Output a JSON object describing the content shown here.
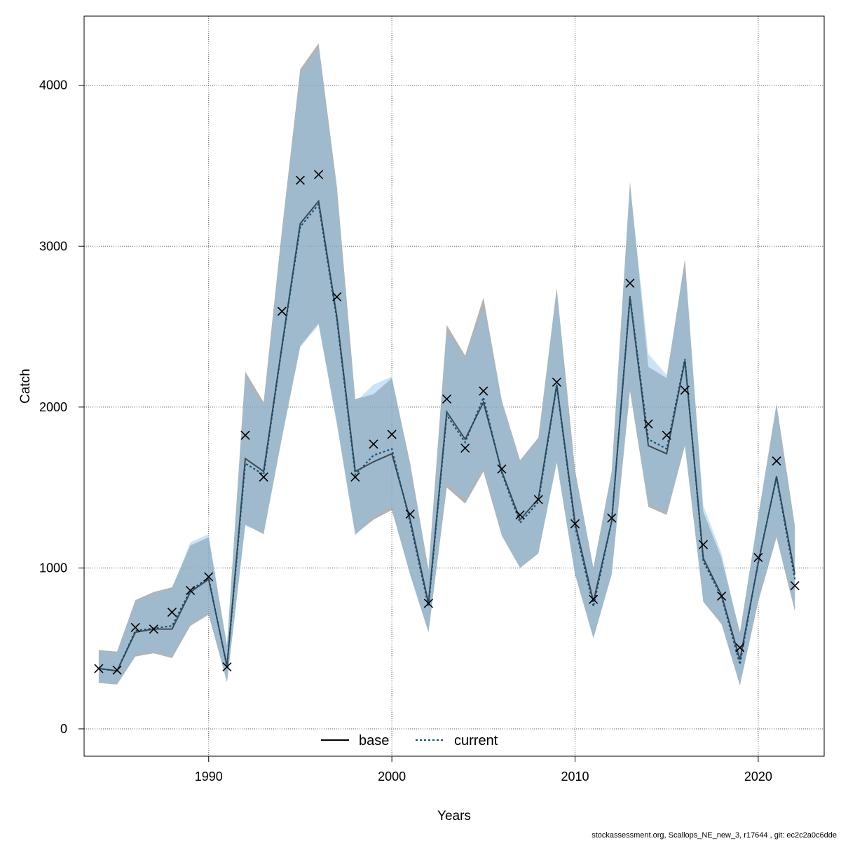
{
  "chart_data": {
    "type": "line",
    "xlabel": "Years",
    "ylabel": "Catch",
    "xlim": [
      1983.2,
      2023.6
    ],
    "ylim": [
      -170,
      4430
    ],
    "xticks": [
      1990,
      2000,
      2010,
      2020
    ],
    "yticks": [
      0,
      1000,
      2000,
      3000,
      4000
    ],
    "grid": true,
    "legend_position": "bottom-center",
    "colors": {
      "base_line": "#000000",
      "base_band": "#8a8a8a",
      "current_line": "#0a4f78",
      "current_band": "#87c3ec",
      "observed": "#000000"
    },
    "series": [
      {
        "name": "base",
        "style": "solid",
        "x": [
          1984,
          1985,
          1986,
          1987,
          1988,
          1989,
          1990,
          1991,
          1992,
          1993,
          1994,
          1995,
          1996,
          1997,
          1998,
          1999,
          2000,
          2001,
          2002,
          2003,
          2004,
          2005,
          2006,
          2007,
          2008,
          2009,
          2010,
          2011,
          2012,
          2013,
          2014,
          2015,
          2016,
          2017,
          2018,
          2019,
          2020,
          2021,
          2022
        ],
        "y": [
          375,
          360,
          600,
          620,
          620,
          850,
          930,
          390,
          1680,
          1600,
          2380,
          3140,
          3280,
          2560,
          1600,
          1660,
          1710,
          1300,
          780,
          1970,
          1800,
          2030,
          1600,
          1300,
          1430,
          2140,
          1280,
          790,
          1290,
          2680,
          1760,
          1710,
          2290,
          1060,
          830,
          430,
          1030,
          1570,
          960
        ],
        "lower": [
          285,
          275,
          450,
          470,
          440,
          640,
          710,
          290,
          1270,
          1210,
          1810,
          2380,
          2520,
          1900,
          1210,
          1300,
          1360,
          960,
          600,
          1500,
          1400,
          1600,
          1200,
          1000,
          1090,
          1660,
          960,
          565,
          960,
          2100,
          1380,
          1330,
          1760,
          790,
          650,
          270,
          790,
          1190,
          730
        ],
        "upper": [
          490,
          480,
          800,
          850,
          880,
          1140,
          1190,
          520,
          2220,
          2030,
          3100,
          4100,
          4260,
          3370,
          2050,
          2080,
          2180,
          1650,
          990,
          2510,
          2320,
          2680,
          2040,
          1670,
          1810,
          2740,
          1610,
          1000,
          1600,
          3400,
          2250,
          2180,
          2920,
          1350,
          1060,
          600,
          1320,
          2020,
          1260
        ]
      },
      {
        "name": "current",
        "style": "dotted",
        "x": [
          1984,
          1985,
          1986,
          1987,
          1988,
          1989,
          1990,
          1991,
          1992,
          1993,
          1994,
          1995,
          1996,
          1997,
          1998,
          1999,
          2000,
          2001,
          2002,
          2003,
          2004,
          2005,
          2006,
          2007,
          2008,
          2009,
          2010,
          2011,
          2012,
          2013,
          2014,
          2015,
          2016,
          2017,
          2018,
          2019,
          2020,
          2021,
          2022
        ],
        "y": [
          375,
          360,
          610,
          625,
          640,
          860,
          940,
          385,
          1650,
          1580,
          2370,
          3120,
          3260,
          2540,
          1580,
          1700,
          1740,
          1280,
          760,
          1950,
          1780,
          2060,
          1590,
          1280,
          1410,
          2130,
          1260,
          760,
          1290,
          2690,
          1800,
          1740,
          2300,
          1040,
          820,
          400,
          1040,
          1560,
          930
        ],
        "lower": [
          290,
          280,
          460,
          480,
          450,
          650,
          720,
          290,
          1260,
          1220,
          1810,
          2370,
          2510,
          1890,
          1200,
          1320,
          1380,
          950,
          600,
          1530,
          1420,
          1620,
          1200,
          1010,
          1090,
          1650,
          960,
          560,
          960,
          2120,
          1400,
          1350,
          1760,
          790,
          660,
          270,
          800,
          1200,
          740
        ],
        "upper": [
          480,
          470,
          790,
          840,
          870,
          1160,
          1210,
          510,
          2180,
          2010,
          3080,
          4070,
          4230,
          3340,
          2030,
          2140,
          2190,
          1640,
          970,
          2470,
          2300,
          2620,
          2030,
          1660,
          1800,
          2720,
          1600,
          990,
          1580,
          3380,
          2330,
          2200,
          2890,
          1390,
          1090,
          580,
          1330,
          2000,
          1230
        ]
      }
    ],
    "observed": {
      "marker": "x",
      "x": [
        1984,
        1985,
        1986,
        1987,
        1988,
        1989,
        1990,
        1991,
        1992,
        1993,
        1994,
        1995,
        1996,
        1997,
        1998,
        1999,
        2000,
        2001,
        2002,
        2003,
        2004,
        2005,
        2006,
        2007,
        2008,
        2009,
        2010,
        2011,
        2012,
        2013,
        2014,
        2015,
        2016,
        2017,
        2018,
        2019,
        2020,
        2021,
        2022
      ],
      "y": [
        375,
        365,
        630,
        620,
        725,
        860,
        945,
        385,
        1825,
        1565,
        2595,
        3410,
        3445,
        2685,
        1565,
        1770,
        1830,
        1335,
        780,
        2050,
        1745,
        2100,
        1615,
        1330,
        1425,
        2155,
        1275,
        805,
        1310,
        2770,
        1895,
        1825,
        2105,
        1145,
        825,
        505,
        1065,
        1665,
        890
      ]
    }
  },
  "footer": {
    "text": "stockassessment.org, Scallops_NE_new_3, r17644 , git: ec2c2a0c6dde"
  }
}
